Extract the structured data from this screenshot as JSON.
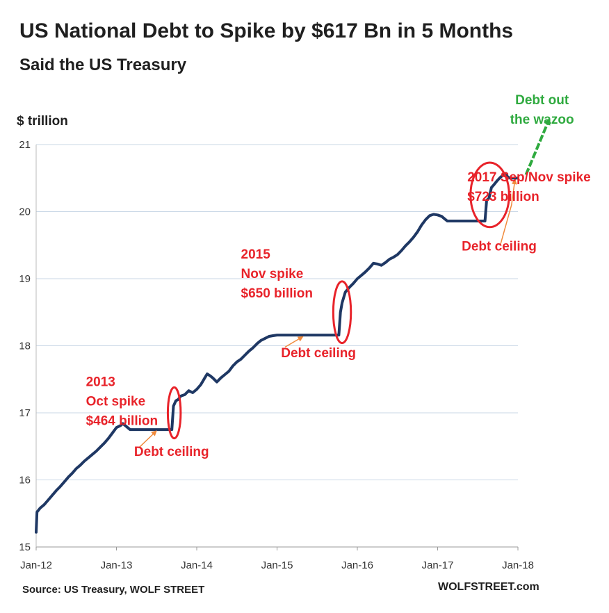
{
  "title": "US National Debt to Spike by $617 Bn in 5 Months",
  "subtitle": "Said the US Treasury",
  "unit_label": "$ trillion",
  "source": "Source: US Treasury, WOLF STREET",
  "brand": "WOLFSTREET.com",
  "colors": {
    "line": "#1f3864",
    "annotation_red": "#e8232a",
    "annotation_green": "#2faa3f",
    "pointer_orange": "#f08a3c",
    "grid": "#c9d7e6",
    "axis_text": "#333333"
  },
  "chart_data": {
    "type": "line",
    "xlabel": "",
    "ylabel": "$ trillion",
    "ylim": [
      15,
      21
    ],
    "yticks": [
      15,
      16,
      17,
      18,
      19,
      20,
      21
    ],
    "xlim": [
      2012.0,
      2018.0
    ],
    "xticks": [
      {
        "x": 2012.0,
        "label": "Jan-12"
      },
      {
        "x": 2013.0,
        "label": "Jan-13"
      },
      {
        "x": 2014.0,
        "label": "Jan-14"
      },
      {
        "x": 2015.0,
        "label": "Jan-15"
      },
      {
        "x": 2016.0,
        "label": "Jan-16"
      },
      {
        "x": 2017.0,
        "label": "Jan-17"
      },
      {
        "x": 2018.0,
        "label": "Jan-18"
      }
    ],
    "grid": "horizontal",
    "series": [
      {
        "name": "",
        "points": [
          [
            2012.0,
            15.22
          ],
          [
            2012.01,
            15.52
          ],
          [
            2012.05,
            15.58
          ],
          [
            2012.1,
            15.63
          ],
          [
            2012.15,
            15.7
          ],
          [
            2012.2,
            15.77
          ],
          [
            2012.25,
            15.84
          ],
          [
            2012.3,
            15.9
          ],
          [
            2012.35,
            15.97
          ],
          [
            2012.4,
            16.04
          ],
          [
            2012.45,
            16.1
          ],
          [
            2012.5,
            16.17
          ],
          [
            2012.55,
            16.22
          ],
          [
            2012.6,
            16.28
          ],
          [
            2012.65,
            16.33
          ],
          [
            2012.7,
            16.38
          ],
          [
            2012.75,
            16.43
          ],
          [
            2012.8,
            16.49
          ],
          [
            2012.85,
            16.55
          ],
          [
            2012.9,
            16.62
          ],
          [
            2012.95,
            16.7
          ],
          [
            2013.0,
            16.78
          ],
          [
            2013.05,
            16.81
          ],
          [
            2013.08,
            16.84
          ],
          [
            2013.12,
            16.8
          ],
          [
            2013.15,
            16.77
          ],
          [
            2013.17,
            16.75
          ],
          [
            2013.3,
            16.75
          ],
          [
            2013.5,
            16.75
          ],
          [
            2013.66,
            16.75
          ],
          [
            2013.69,
            16.75
          ],
          [
            2013.71,
            17.1
          ],
          [
            2013.74,
            17.18
          ],
          [
            2013.77,
            17.2
          ],
          [
            2013.8,
            17.25
          ],
          [
            2013.85,
            17.27
          ],
          [
            2013.9,
            17.33
          ],
          [
            2013.95,
            17.3
          ],
          [
            2014.0,
            17.35
          ],
          [
            2014.05,
            17.42
          ],
          [
            2014.1,
            17.52
          ],
          [
            2014.13,
            17.58
          ],
          [
            2014.17,
            17.55
          ],
          [
            2014.2,
            17.52
          ],
          [
            2014.25,
            17.46
          ],
          [
            2014.3,
            17.52
          ],
          [
            2014.35,
            17.57
          ],
          [
            2014.4,
            17.62
          ],
          [
            2014.45,
            17.7
          ],
          [
            2014.5,
            17.76
          ],
          [
            2014.55,
            17.8
          ],
          [
            2014.6,
            17.86
          ],
          [
            2014.65,
            17.92
          ],
          [
            2014.7,
            17.97
          ],
          [
            2014.75,
            18.03
          ],
          [
            2014.8,
            18.08
          ],
          [
            2014.85,
            18.11
          ],
          [
            2014.9,
            18.14
          ],
          [
            2014.95,
            18.15
          ],
          [
            2015.0,
            18.16
          ],
          [
            2015.2,
            18.16
          ],
          [
            2015.4,
            18.16
          ],
          [
            2015.6,
            18.16
          ],
          [
            2015.75,
            18.16
          ],
          [
            2015.77,
            18.16
          ],
          [
            2015.79,
            18.5
          ],
          [
            2015.81,
            18.64
          ],
          [
            2015.85,
            18.8
          ],
          [
            2015.9,
            18.87
          ],
          [
            2015.95,
            18.93
          ],
          [
            2016.0,
            19.0
          ],
          [
            2016.05,
            19.05
          ],
          [
            2016.1,
            19.1
          ],
          [
            2016.15,
            19.16
          ],
          [
            2016.2,
            19.23
          ],
          [
            2016.25,
            19.22
          ],
          [
            2016.3,
            19.2
          ],
          [
            2016.35,
            19.24
          ],
          [
            2016.4,
            19.29
          ],
          [
            2016.45,
            19.32
          ],
          [
            2016.5,
            19.36
          ],
          [
            2016.55,
            19.42
          ],
          [
            2016.6,
            19.49
          ],
          [
            2016.65,
            19.55
          ],
          [
            2016.7,
            19.62
          ],
          [
            2016.75,
            19.7
          ],
          [
            2016.8,
            19.8
          ],
          [
            2016.85,
            19.88
          ],
          [
            2016.9,
            19.94
          ],
          [
            2016.95,
            19.96
          ],
          [
            2017.0,
            19.95
          ],
          [
            2017.05,
            19.93
          ],
          [
            2017.08,
            19.9
          ],
          [
            2017.12,
            19.86
          ],
          [
            2017.2,
            19.86
          ],
          [
            2017.4,
            19.86
          ],
          [
            2017.57,
            19.86
          ],
          [
            2017.59,
            19.86
          ],
          [
            2017.61,
            20.17
          ],
          [
            2017.64,
            20.2
          ],
          [
            2017.67,
            20.36
          ],
          [
            2017.7,
            20.4
          ],
          [
            2017.74,
            20.46
          ],
          [
            2017.78,
            20.51
          ],
          [
            2017.82,
            20.55
          ],
          [
            2017.85,
            20.57
          ],
          [
            2017.87,
            20.52
          ],
          [
            2017.9,
            20.5
          ],
          [
            2017.97,
            20.5
          ],
          [
            2018.0,
            20.5
          ]
        ]
      }
    ],
    "annotations": [
      {
        "text": [
          "2013",
          "Oct spike",
          "$464 billion"
        ],
        "color": "red",
        "x": 2012.62,
        "y": 17.4
      },
      {
        "text": [
          "Debt ceiling"
        ],
        "color": "red",
        "x": 2013.22,
        "y": 16.36
      },
      {
        "text": [
          "2015",
          "Nov spike",
          "$650 billion"
        ],
        "color": "red",
        "x": 2014.55,
        "y": 19.3
      },
      {
        "text": [
          "Debt ceiling"
        ],
        "color": "red",
        "x": 2015.05,
        "y": 17.83
      },
      {
        "text": [
          "2017 Sep/Nov spike",
          "$723 billion"
        ],
        "color": "red",
        "x": 2017.37,
        "y": 20.45
      },
      {
        "text": [
          "Debt ceiling"
        ],
        "color": "red",
        "x": 2017.3,
        "y": 19.42
      },
      {
        "text": [
          "Debt out",
          "the wazoo"
        ],
        "color": "green",
        "x": 2018.3,
        "y": 21.6
      }
    ],
    "ellipses": [
      {
        "x": 2013.72,
        "y": 17.0,
        "rx_years": 0.08,
        "ry_value": 0.38
      },
      {
        "x": 2015.81,
        "y": 18.5,
        "rx_years": 0.11,
        "ry_value": 0.46
      },
      {
        "x": 2017.65,
        "y": 20.25,
        "rx_years": 0.24,
        "ry_value": 0.48
      }
    ]
  }
}
